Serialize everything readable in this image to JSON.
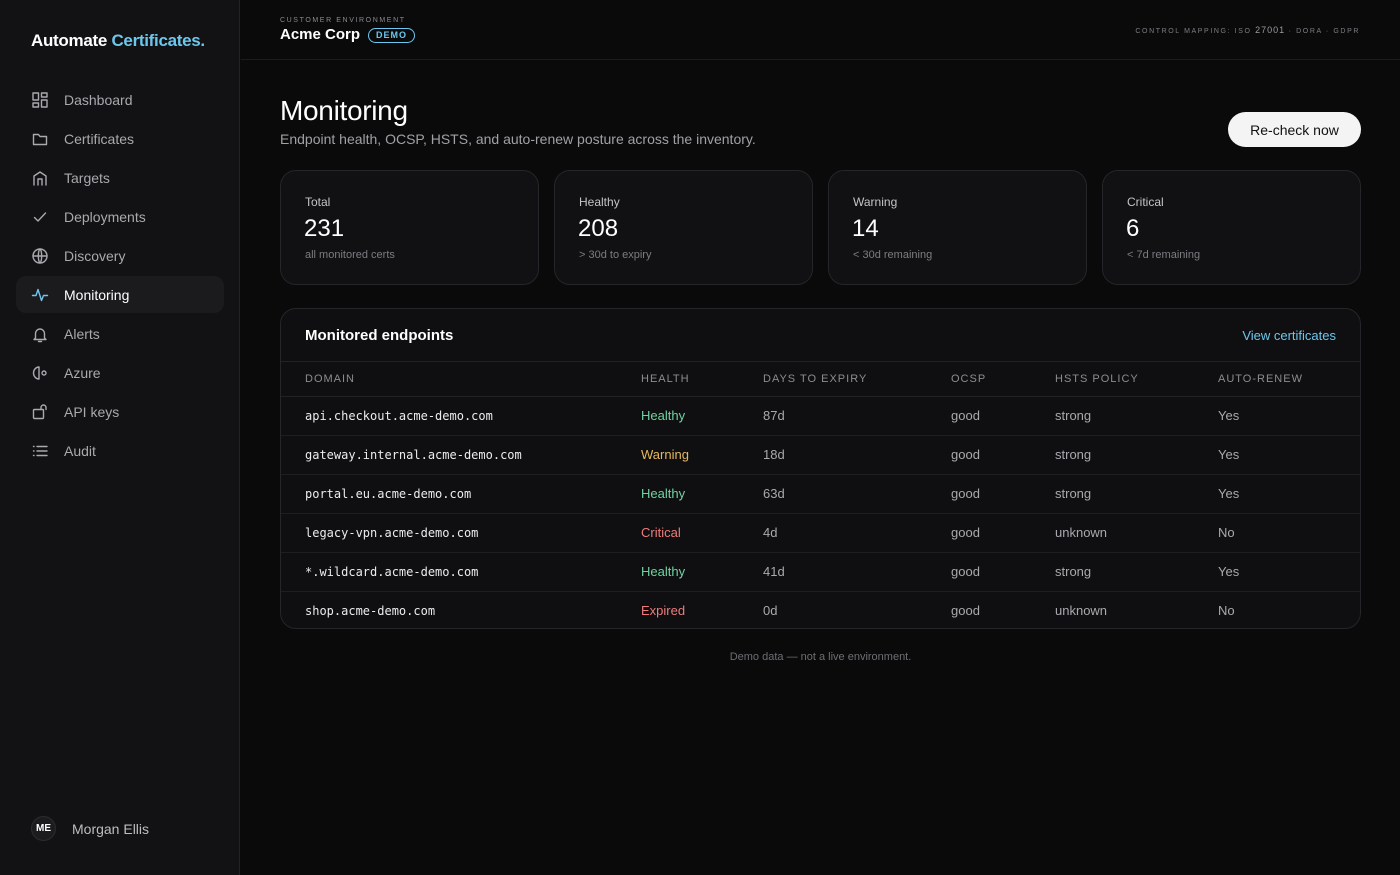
{
  "brand": {
    "name": "Automate",
    "accent": "Certificates."
  },
  "sidebar": {
    "items": [
      {
        "label": "Dashboard",
        "icon": "dashboard-icon"
      },
      {
        "label": "Certificates",
        "icon": "folder-icon"
      },
      {
        "label": "Targets",
        "icon": "building-icon"
      },
      {
        "label": "Deployments",
        "icon": "check-icon"
      },
      {
        "label": "Discovery",
        "icon": "globe-icon"
      },
      {
        "label": "Monitoring",
        "icon": "pulse-icon",
        "active": true
      },
      {
        "label": "Alerts",
        "icon": "bell-icon"
      },
      {
        "label": "Azure",
        "icon": "azure-icon"
      },
      {
        "label": "API keys",
        "icon": "key-icon"
      },
      {
        "label": "Audit",
        "icon": "list-icon"
      }
    ],
    "user": {
      "initials": "ME",
      "name": "Morgan Ellis"
    }
  },
  "topbar": {
    "env_label": "CUSTOMER ENVIRONMENT",
    "env_name": "Acme Corp",
    "badge": "DEMO",
    "control_prefix": "CONTROL MAPPING: ISO",
    "control_iso": "27001",
    "control_suffix": "· DORA · GDPR"
  },
  "header": {
    "title": "Monitoring",
    "subtitle": "Endpoint health, OCSP, HSTS, and auto-renew posture across the inventory.",
    "recheck_label": "Re-check now"
  },
  "stats": [
    {
      "label": "Total",
      "value": "231",
      "note": "all monitored certs"
    },
    {
      "label": "Healthy",
      "value": "208",
      "note": "> 30d to expiry"
    },
    {
      "label": "Warning",
      "value": "14",
      "note": "< 30d remaining"
    },
    {
      "label": "Critical",
      "value": "6",
      "note": "< 7d remaining"
    }
  ],
  "panel": {
    "title": "Monitored endpoints",
    "link": "View certificates",
    "columns": [
      "DOMAIN",
      "HEALTH",
      "DAYS TO EXPIRY",
      "OCSP",
      "HSTS POLICY",
      "AUTO-RENEW"
    ],
    "rows": [
      {
        "domain": "api.checkout.acme-demo.com",
        "health": "Healthy",
        "days": "87d",
        "ocsp": "good",
        "hsts": "strong",
        "renew": "Yes"
      },
      {
        "domain": "gateway.internal.acme-demo.com",
        "health": "Warning",
        "days": "18d",
        "ocsp": "good",
        "hsts": "strong",
        "renew": "Yes"
      },
      {
        "domain": "portal.eu.acme-demo.com",
        "health": "Healthy",
        "days": "63d",
        "ocsp": "good",
        "hsts": "strong",
        "renew": "Yes"
      },
      {
        "domain": "legacy-vpn.acme-demo.com",
        "health": "Critical",
        "days": "4d",
        "ocsp": "good",
        "hsts": "unknown",
        "renew": "No"
      },
      {
        "domain": "*.wildcard.acme-demo.com",
        "health": "Healthy",
        "days": "41d",
        "ocsp": "good",
        "hsts": "strong",
        "renew": "Yes"
      },
      {
        "domain": "shop.acme-demo.com",
        "health": "Expired",
        "days": "0d",
        "ocsp": "good",
        "hsts": "unknown",
        "renew": "No"
      }
    ]
  },
  "footer": {
    "note": "Demo data — not a live environment."
  },
  "colors": {
    "accent": "#6cc7ee",
    "healthy": "#6fd3a0",
    "warning": "#e6b85c",
    "critical": "#ee7b7b",
    "background": "#0a0a0b"
  }
}
